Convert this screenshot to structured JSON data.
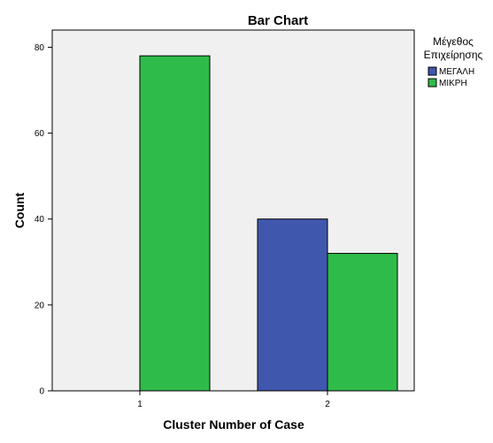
{
  "chart_data": {
    "type": "bar",
    "title": "Bar Chart",
    "xlabel": "Cluster Number of Case",
    "ylabel": "Count",
    "categories": [
      "1",
      "2"
    ],
    "series": [
      {
        "name": "ΜΕΓΑΛΗ",
        "values": [
          0,
          40
        ],
        "color": "#3f57ad"
      },
      {
        "name": "ΜΙΚΡΗ",
        "values": [
          78,
          32
        ],
        "color": "#2fbb4a"
      }
    ],
    "ylim": [
      0,
      84
    ],
    "yticks": [
      0,
      20,
      40,
      60,
      80
    ],
    "grid": false,
    "legend": {
      "title_lines": [
        "Μέγεθος",
        "Επιχείρησης"
      ],
      "placement": "right"
    },
    "colors": {
      "plot_background": "#f0f0f0",
      "page_background": "#ffffff"
    }
  }
}
